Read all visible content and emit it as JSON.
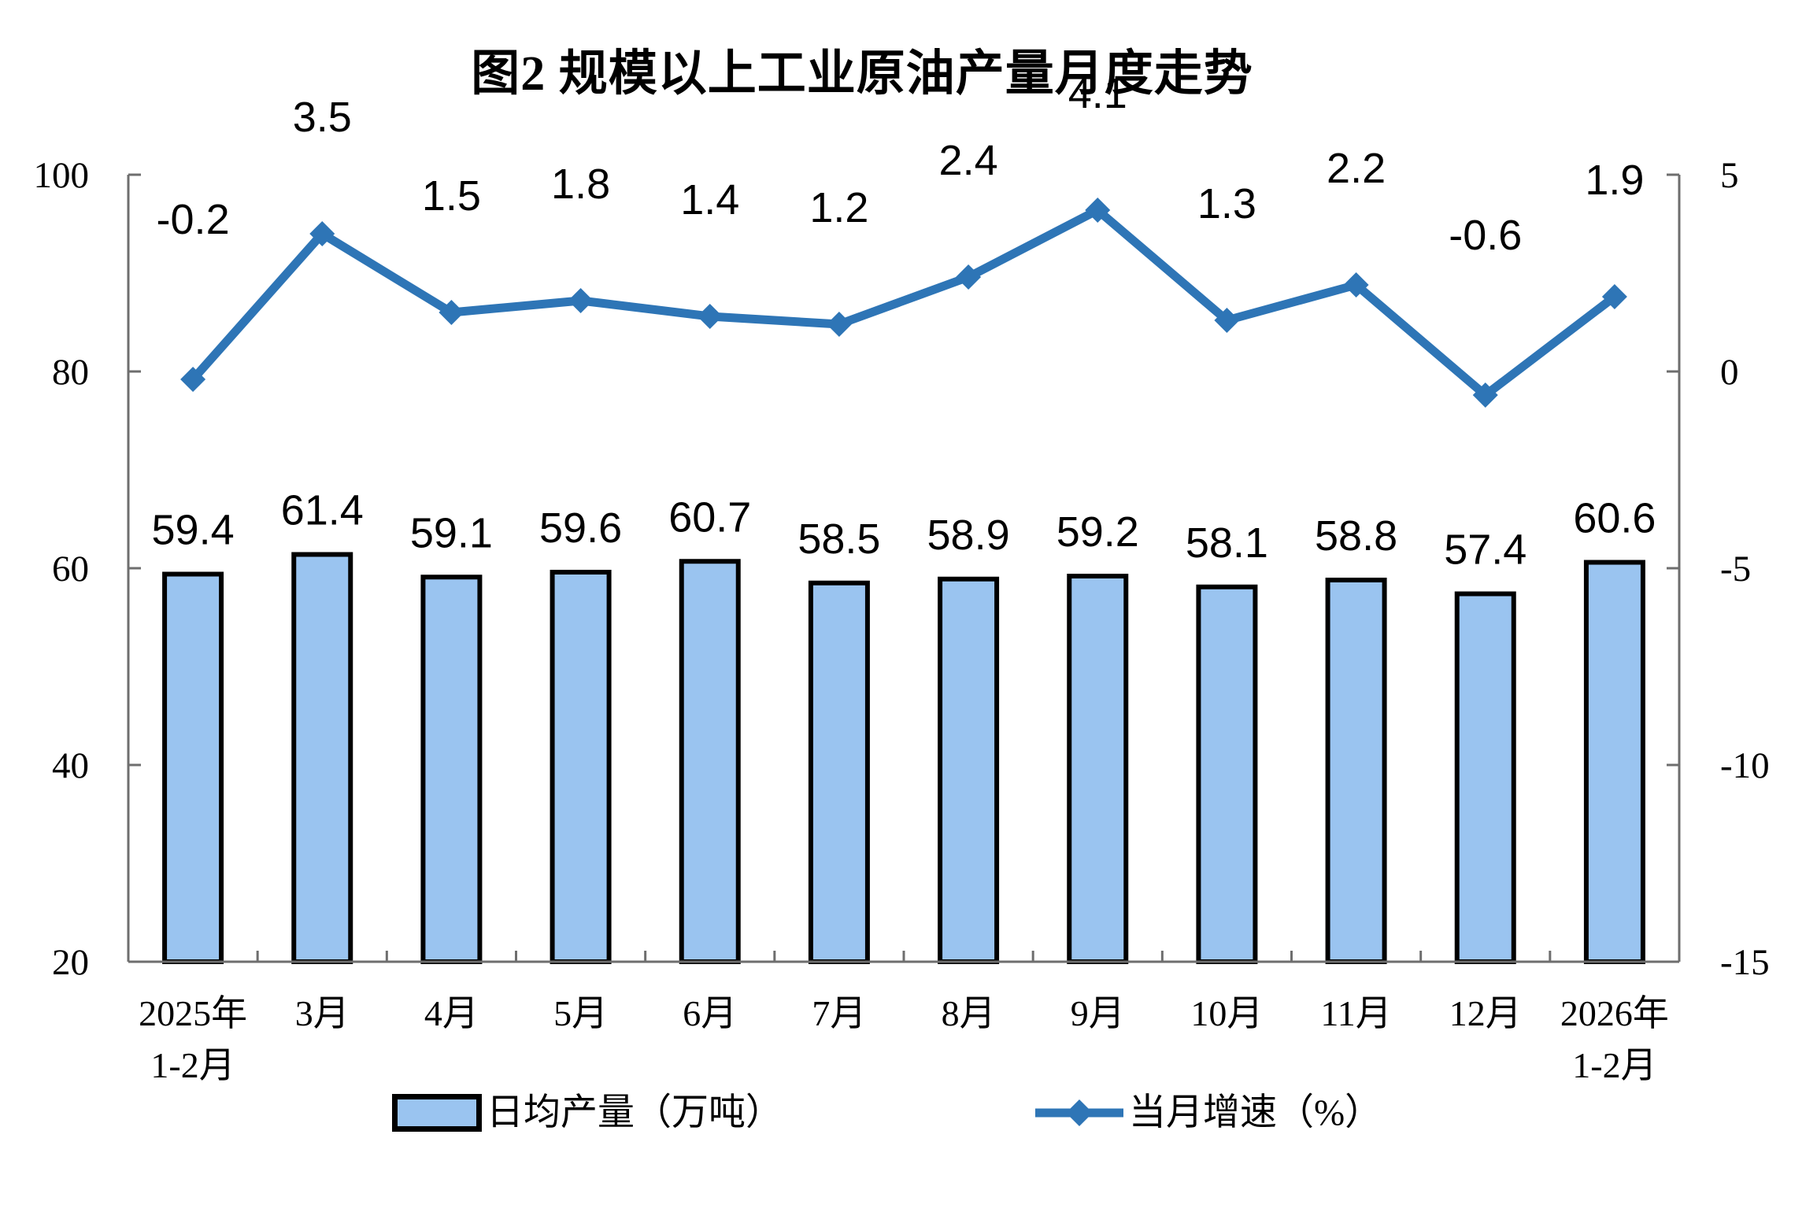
{
  "chart_data": {
    "type": "bar+line combo",
    "title": "图2 规模以上工业原油产量月度走势",
    "categories": [
      "2025年\n1-2月",
      "3月",
      "4月",
      "5月",
      "6月",
      "7月",
      "8月",
      "9月",
      "10月",
      "11月",
      "12月",
      "2026年\n1-2月"
    ],
    "series": [
      {
        "name": "日均产量（万吨）",
        "type": "bar",
        "axis": "left",
        "values": [
          59.4,
          61.4,
          59.1,
          59.6,
          60.7,
          58.5,
          58.9,
          59.2,
          58.1,
          58.8,
          57.4,
          60.6
        ],
        "fill_color": "#9AC4F0",
        "border_color": "#000000"
      },
      {
        "name": "当月增速（%）",
        "type": "line",
        "axis": "right",
        "values": [
          -0.2,
          3.5,
          1.5,
          1.8,
          1.4,
          1.2,
          2.4,
          4.1,
          1.3,
          2.2,
          -0.6,
          1.9
        ],
        "color": "#2E75B6",
        "marker": "diamond"
      }
    ],
    "left_axis": {
      "min": 20,
      "max": 100,
      "ticks": [
        20,
        40,
        60,
        80,
        100
      ]
    },
    "right_axis": {
      "min": -15,
      "max": 5,
      "ticks": [
        -15,
        -10,
        -5,
        0,
        5
      ]
    },
    "grid": false,
    "legend_position": "bottom",
    "axis_color": "#6E6E6E",
    "label_color": "#000000"
  }
}
